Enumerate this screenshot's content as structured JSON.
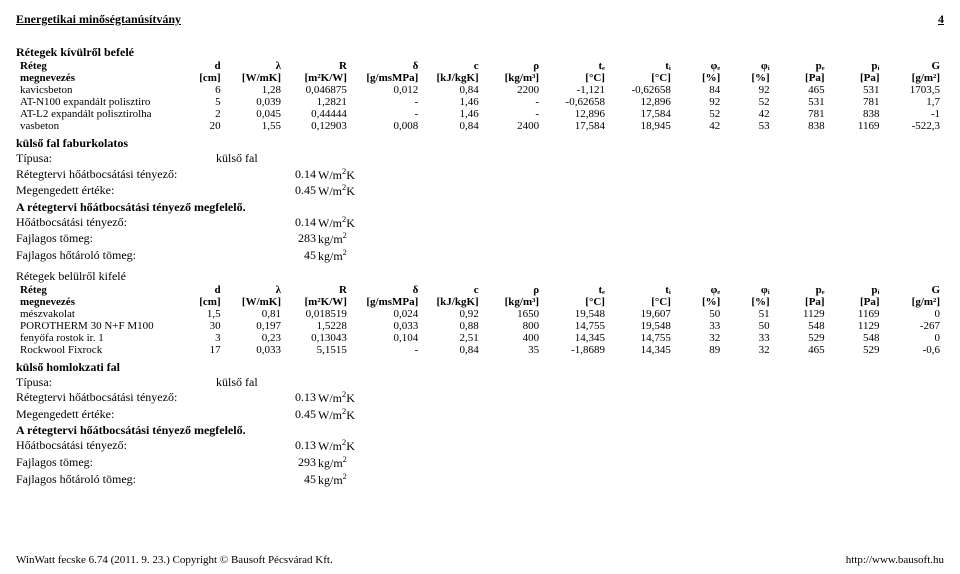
{
  "page": {
    "title": "Energetikai minőségtanúsítvány",
    "page_number": "4",
    "footer_left": "WinWatt fecske 6.74 (2011. 9. 23.) Copyright © Bausoft Pécsvárad Kft.",
    "footer_right": "http://www.bausoft.hu"
  },
  "labels": {
    "layers_out_in": "Rétegek kívülről befelé",
    "layers_in_out": "Rétegek belülről kifelé",
    "layer": "Réteg",
    "megjegyzes": "megnevezés",
    "type": "Típusa:",
    "type_val": "külső fal",
    "u_plan": "Rétegtervi hőátbocsátási tényező:",
    "u_allowed": "Megengedett értéke:",
    "u_ok": "A rétegtervi hőátbocsátási tényező megfelelő.",
    "u_coef": "Hőátbocsátási tényező:",
    "mass": "Fajlagos tömeg:",
    "heat_mass": "Fajlagos hőtároló tömeg:"
  },
  "cols": {
    "name": "megnevezés",
    "d": "d",
    "lambda": "λ",
    "R": "R",
    "delta": "δ",
    "c": "c",
    "rho": "ρ",
    "te": "tₑ",
    "ti": "tᵢ",
    "phi_e": "φₑ",
    "phi_i": "φᵢ",
    "pe": "pₑ",
    "pi": "pᵢ",
    "G": "G",
    "u_name": "[cm]",
    "u_lambda": "[W/mK]",
    "u_R": "[m²K/W]",
    "u_delta": "[g/msMPa]",
    "u_c": "[kJ/kgK]",
    "u_rho": "[kg/m³]",
    "u_te": "[°C]",
    "u_ti": "[°C]",
    "u_phi_e": "[%]",
    "u_phi_i": "[%]",
    "u_pe": "[Pa]",
    "u_pi": "[Pa]",
    "u_G": "[g/m²]"
  },
  "section1": {
    "name": "külső fal faburkolatos",
    "rows": [
      {
        "n": "kavicsbeton",
        "d": "6",
        "l": "1,28",
        "R": "0,046875",
        "dl": "0,012",
        "c": "0,84",
        "rho": "2200",
        "te": "-1,121",
        "ti": "-0,62658",
        "pe": "84",
        "pi": "92",
        "ppe": "465",
        "ppi": "531",
        "G": "1703,5"
      },
      {
        "n": "AT-N100 expandált polisztiro",
        "d": "5",
        "l": "0,039",
        "R": "1,2821",
        "dl": "-",
        "c": "1,46",
        "rho": "-",
        "te": "-0,62658",
        "ti": "12,896",
        "pe": "92",
        "pi": "52",
        "ppe": "531",
        "ppi": "781",
        "G": "1,7"
      },
      {
        "n": "AT-L2 expandált polisztirolha",
        "d": "2",
        "l": "0,045",
        "R": "0,44444",
        "dl": "-",
        "c": "1,46",
        "rho": "-",
        "te": "12,896",
        "ti": "17,584",
        "pe": "52",
        "pi": "42",
        "ppe": "781",
        "ppi": "838",
        "G": "-1"
      },
      {
        "n": "vasbeton",
        "d": "20",
        "l": "1,55",
        "R": "0,12903",
        "dl": "0,008",
        "c": "0,84",
        "rho": "2400",
        "te": "17,584",
        "ti": "18,945",
        "pe": "42",
        "pi": "53",
        "ppe": "838",
        "ppi": "1169",
        "G": "-522,3"
      }
    ],
    "u_plan_val": "0.14",
    "u_allowed_val": "0.45",
    "u_coef_val": "0.14",
    "mass_val": "283",
    "heat_mass_val": "45"
  },
  "section2": {
    "name": "külső homlokzati fal",
    "rows": [
      {
        "n": "mészvakolat",
        "d": "1,5",
        "l": "0,81",
        "R": "0,018519",
        "dl": "0,024",
        "c": "0,92",
        "rho": "1650",
        "te": "19,548",
        "ti": "19,607",
        "pe": "50",
        "pi": "51",
        "ppe": "1129",
        "ppi": "1169",
        "G": "0"
      },
      {
        "n": "POROTHERM 30 N+F M100",
        "d": "30",
        "l": "0,197",
        "R": "1,5228",
        "dl": "0,033",
        "c": "0,88",
        "rho": "800",
        "te": "14,755",
        "ti": "19,548",
        "pe": "33",
        "pi": "50",
        "ppe": "548",
        "ppi": "1129",
        "G": "-267"
      },
      {
        "n": "fenyőfa rostok ir. 1",
        "d": "3",
        "l": "0,23",
        "R": "0,13043",
        "dl": "0,104",
        "c": "2,51",
        "rho": "400",
        "te": "14,345",
        "ti": "14,755",
        "pe": "32",
        "pi": "33",
        "ppe": "529",
        "ppi": "548",
        "G": "0"
      },
      {
        "n": "Rockwool Fixrock",
        "d": "17",
        "l": "0,033",
        "R": "5,1515",
        "dl": "-",
        "c": "0,84",
        "rho": "35",
        "te": "-1,8689",
        "ti": "14,345",
        "pe": "89",
        "pi": "32",
        "ppe": "465",
        "ppi": "529",
        "G": "-0,6"
      }
    ],
    "u_plan_val": "0.13",
    "u_allowed_val": "0.45",
    "u_coef_val": "0.13",
    "mass_val": "293",
    "heat_mass_val": "45"
  },
  "units": {
    "u": "W/m²K",
    "mass": "kg/m²"
  }
}
